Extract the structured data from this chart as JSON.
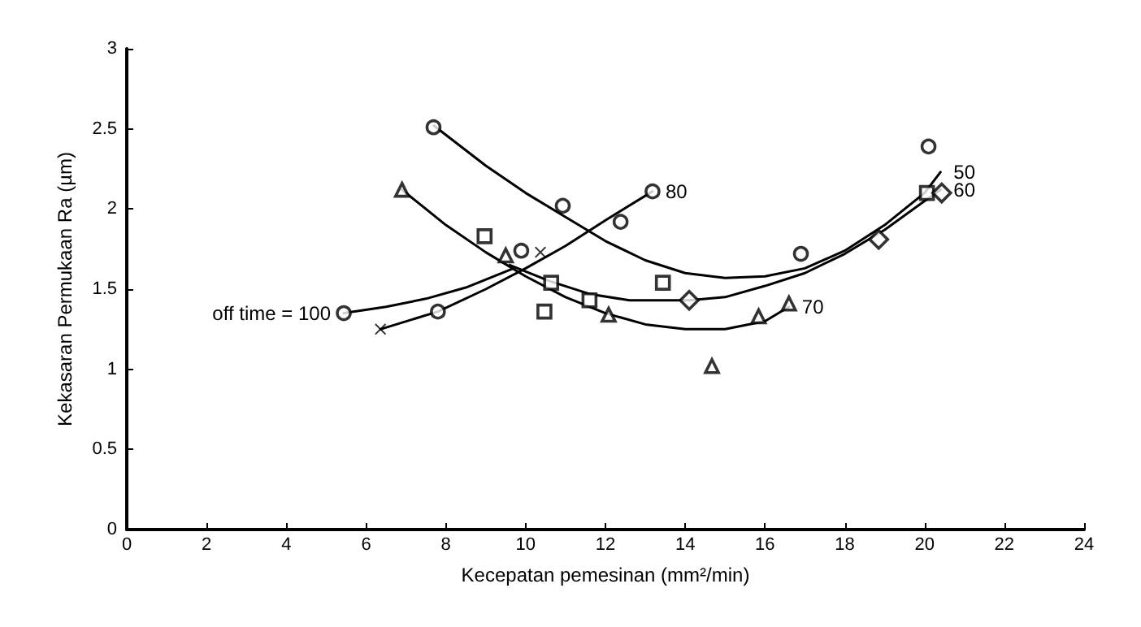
{
  "chart_data": {
    "type": "scatter",
    "xlabel": "Kecepatan pemesinan (mm²/min)",
    "ylabel": "Kekasaran Permukaan Ra (µm)",
    "xlim": [
      0,
      24
    ],
    "xticks": [
      0,
      2,
      4,
      6,
      8,
      10,
      12,
      14,
      16,
      18,
      20,
      22,
      24
    ],
    "ylim": [
      0,
      3
    ],
    "yticks": [
      0,
      0.5,
      1,
      1.5,
      2,
      2.5,
      3
    ],
    "grid": false,
    "legend": false,
    "series": [
      {
        "type": "line",
        "name": "50",
        "color": "#000000",
        "marker": "none",
        "x": [
          7.7,
          9,
          10,
          11,
          12,
          13,
          14,
          15,
          16,
          17,
          18,
          19,
          20,
          20.4
        ],
        "values": [
          2.52,
          2.27,
          2.1,
          1.95,
          1.8,
          1.68,
          1.6,
          1.57,
          1.58,
          1.63,
          1.74,
          1.9,
          2.1,
          2.23
        ]
      },
      {
        "type": "line",
        "name": "60",
        "color": "#000000",
        "marker": "none",
        "x": [
          9.6,
          10.6,
          11.6,
          12.6,
          14.1,
          15,
          16,
          17,
          18,
          19,
          20,
          20.4
        ],
        "values": [
          1.65,
          1.55,
          1.47,
          1.43,
          1.43,
          1.45,
          1.52,
          1.6,
          1.72,
          1.87,
          2.05,
          2.12
        ]
      },
      {
        "type": "line",
        "name": "70",
        "color": "#000000",
        "marker": "none",
        "x": [
          6.9,
          8,
          9,
          10,
          11,
          12,
          13,
          14,
          15,
          16,
          16.6
        ],
        "values": [
          2.12,
          1.9,
          1.73,
          1.58,
          1.45,
          1.35,
          1.28,
          1.25,
          1.25,
          1.3,
          1.39
        ]
      },
      {
        "type": "line",
        "name": "80",
        "color": "#000000",
        "marker": "none",
        "x": [
          6.36,
          7.8,
          9,
          10,
          11,
          12,
          13.18
        ],
        "values": [
          1.25,
          1.36,
          1.5,
          1.63,
          1.77,
          1.93,
          2.11
        ]
      },
      {
        "type": "line",
        "name": "off time = 100",
        "color": "#000000",
        "marker": "none",
        "x": [
          9.7,
          8.5,
          7.5,
          6.5,
          5.44
        ],
        "values": [
          1.63,
          1.51,
          1.44,
          1.39,
          1.35
        ]
      },
      {
        "color": "#000000",
        "marker": "circle",
        "x": [
          7.69,
          10.93,
          16.9,
          20.1
        ],
        "values": [
          2.51,
          2.02,
          1.72,
          2.39
        ]
      },
      {
        "color": "#000000",
        "marker": "square",
        "x": [
          8.97,
          10.47,
          10.64,
          11.6,
          13.44,
          20.06
        ],
        "values": [
          1.83,
          1.36,
          1.54,
          1.43,
          1.54,
          2.1
        ]
      },
      {
        "color": "#000000",
        "marker": "diamond",
        "x": [
          14.1,
          18.85,
          20.43
        ],
        "values": [
          1.43,
          1.81,
          2.1
        ]
      },
      {
        "color": "#000000",
        "marker": "triangle",
        "x": [
          6.9,
          9.5,
          12.08,
          14.67,
          15.84,
          16.6
        ],
        "values": [
          2.12,
          1.71,
          1.34,
          1.02,
          1.33,
          1.41
        ]
      },
      {
        "color": "#000000",
        "marker": "circle",
        "x": [
          5.44,
          7.8,
          9.89,
          12.38,
          13.18
        ],
        "values": [
          1.35,
          1.36,
          1.74,
          1.92,
          2.11
        ]
      },
      {
        "color": "#000000",
        "marker": "cross",
        "x": [
          6.36,
          10.37
        ],
        "values": [
          1.25,
          1.73
        ]
      }
    ]
  }
}
